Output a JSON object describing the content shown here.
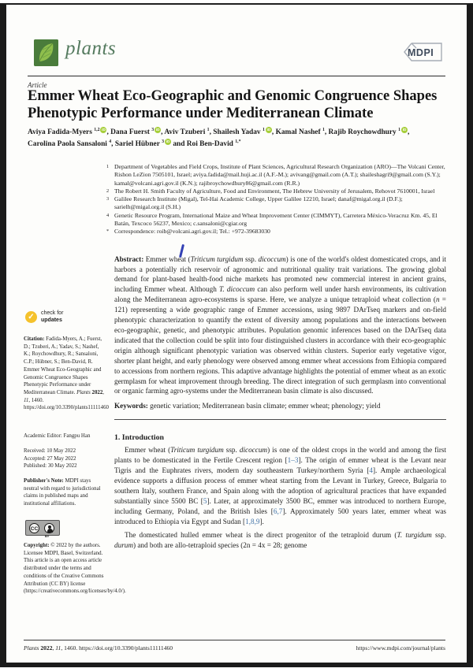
{
  "colors": {
    "accent_orcid_green": "#a6ce39",
    "logo_square_green": "#4a7c3b",
    "logo_leaf_green": "#8fbf4d",
    "journal_name_green": "#547a5e",
    "updates_badge_yellow": "#f5c22c",
    "reference_link_blue": "#4273a8",
    "mdpi_logo_gray": "#3f4b5c",
    "frame_border_dark": "#1b1b1b"
  },
  "icons": {
    "check_glyph": "✓",
    "orcid_glyph": "iD",
    "cc_glyph": "CC",
    "by_glyph": "BY"
  },
  "header": {
    "journal_name": "plants",
    "mdpi_label": "MDPI",
    "article_type": "Article"
  },
  "title": "Emmer Wheat Eco-Geographic and Genomic Congruence Shapes Phenotypic Performance under Mediterranean Climate",
  "authors_rich": [
    {
      "t": "Aviya Fadida-Myers "
    },
    {
      "t": "1,2",
      "sup": true
    },
    {
      "icon": "orcid"
    },
    {
      "t": ", Dana Fuerst "
    },
    {
      "t": "3",
      "sup": true
    },
    {
      "icon": "orcid"
    },
    {
      "t": ", Aviv Tzuberi "
    },
    {
      "t": "1",
      "sup": true
    },
    {
      "t": ", Shailesh Yadav "
    },
    {
      "t": "1",
      "sup": true
    },
    {
      "icon": "orcid"
    },
    {
      "t": ", Kamal Nashef "
    },
    {
      "t": "1",
      "sup": true
    },
    {
      "t": ", Rajib Roychowdhury "
    },
    {
      "t": "1",
      "sup": true
    },
    {
      "icon": "orcid"
    },
    {
      "t": ", Carolina Paola Sansaloni "
    },
    {
      "t": "4",
      "sup": true
    },
    {
      "t": ", Sariel Hübner "
    },
    {
      "t": "3",
      "sup": true
    },
    {
      "icon": "orcid"
    },
    {
      "t": " and Roi Ben-David "
    },
    {
      "t": "1,*",
      "sup": true
    }
  ],
  "affiliations": [
    {
      "num": "1",
      "text": [
        {
          "t": "Department of Vegetables and Field Crops, Institute of Plant Sciences, Agricultural Research Organization (ARO)—The Volcani Center, Rishon LeZion 7505101, Israel; aviya.fadida@mail.huji.ac.il (A.F.-M.); avivang@gmail.com (A.T.); shaileshagri9@gmail.com (S.Y.); kamal@volcani.agri.gov.il (K.N.); rajibroychowdhury86@gmail.com (R.R.)"
        }
      ]
    },
    {
      "num": "2",
      "text": [
        {
          "t": "The Robert H. Smith Faculty of Agriculture, Food and Environment, The Hebrew University of Jerusalem, Rehovot 7610001, Israel"
        }
      ]
    },
    {
      "num": "3",
      "text": [
        {
          "t": "Galilee Research Institute (Migal), Tel-Hai Academic College, Upper Galilee 12210, Israel; danaf@migal.org.il (D.F.); sarielh@migal.org.il (S.H.)"
        }
      ]
    },
    {
      "num": "4",
      "text": [
        {
          "t": "Genetic Resource Program, International Maize and Wheat Improvement Center (CIMMYT), Carretera México-Veracruz Km. 45, El Batán, Texcoco 56237, Mexico; c.sansaloni@cgiar.org"
        }
      ]
    },
    {
      "num": "*",
      "text": [
        {
          "t": "Correspondence: roib@volcani.agri.gov.il; Tel.: +972-39683030"
        }
      ]
    }
  ],
  "abstract_rich": [
    {
      "t": "Abstract: ",
      "b": true
    },
    {
      "t": "Emmer wheat ("
    },
    {
      "t": "Triticum turgidum",
      "i": true
    },
    {
      "t": " ssp. "
    },
    {
      "t": "dicoccum",
      "i": true
    },
    {
      "t": ") is one of the world's oldest domesticated crops, and it harbors a potentially rich reservoir of agronomic and nutritional quality trait variations. The growing global demand for plant-based health-food niche markets has promoted new commercial interest in ancient grains, including Emmer wheat. Although "
    },
    {
      "t": "T. dicoccum",
      "i": true
    },
    {
      "t": " can also perform well under harsh environments, its cultivation along the Mediterranean agro-ecosystems is sparse. Here, we analyze a unique tetraploid wheat collection ("
    },
    {
      "t": "n",
      "i": true
    },
    {
      "t": " = 121) representing a wide geographic range of Emmer accessions, using 9897 DArTseq markers and on-field phenotypic characterization to quantify the extent of diversity among populations and the interactions between eco-geographic, genetic, and phenotypic attributes. Population genomic inferences based on the DArTseq data indicated that the collection could be split into four distinguished clusters in accordance with their eco-geographic origin although significant phenotypic variation was observed within clusters. Superior early vegetative vigor, shorter plant height, and early phenology were observed among emmer wheat accessions from Ethiopia compared to accessions from northern regions. This adaptive advantage highlights the potential of emmer wheat as an exotic germplasm for wheat improvement through breeding. The direct integration of such germplasm into conventional or organic farming agro-systems under the Mediterranean basin climate is also discussed."
    }
  ],
  "keywords_rich": [
    {
      "t": "Keywords: ",
      "b": true
    },
    {
      "t": "genetic variation; Mediterranean basin climate; emmer wheat; phenology; yield"
    }
  ],
  "sidebar": {
    "updates_line1": "check for",
    "updates_line2": "updates",
    "citation_rich": [
      {
        "t": "Citation: ",
        "b": true
      },
      {
        "t": "Fadida-Myers, A.; Fuerst, D.; Tzuberi, A.; Yadav, S.; Nashef, K.; Roychowdhury, R.; Sansaloni, C.P.; Hübner, S.; Ben-David, R. Emmer Wheat Eco-Geographic and Genomic Congruence Shapes Phenotypic Performance under Mediterranean Climate. "
      },
      {
        "t": "Plants ",
        "i": true
      },
      {
        "t": "2022",
        "b": true
      },
      {
        "t": ", "
      },
      {
        "t": "11",
        "i": true
      },
      {
        "t": ", 1460. https://doi.org/10.3390/plants11111460"
      }
    ],
    "academic_editor": "Academic Editor: Fangpu Han",
    "received": "Received: 10 May 2022",
    "accepted": "Accepted: 27 May 2022",
    "published": "Published: 30 May 2022",
    "publisher_note_rich": [
      {
        "t": "Publisher's Note: ",
        "b": true
      },
      {
        "t": "MDPI stays neutral with regard to jurisdictional claims in published maps and institutional affiliations."
      }
    ],
    "copyright_rich": [
      {
        "t": "Copyright: ",
        "b": true
      },
      {
        "t": "© 2022 by the authors. Licensee MDPI, Basel, Switzerland. This article is an open access article distributed under the terms and conditions of the Creative Commons Attribution (CC BY) license (https://creativecommons.org/licenses/by/4.0/)."
      }
    ]
  },
  "introduction": {
    "heading": "1. Introduction",
    "para1_rich": [
      {
        "t": "Emmer wheat ("
      },
      {
        "t": "Triticum turgidum",
        "i": true
      },
      {
        "t": " ssp. "
      },
      {
        "t": "dicoccum",
        "i": true
      },
      {
        "t": ") is one of the oldest crops in the world and among the first plants to be domesticated in the Fertile Crescent region ["
      },
      {
        "t": "1–3",
        "link": true
      },
      {
        "t": "]. The origin of emmer wheat is the Levant near Tigris and the Euphrates rivers, modern day southeastern Turkey/northern Syria ["
      },
      {
        "t": "4",
        "link": true
      },
      {
        "t": "]. Ample archaeological evidence supports a diffusion process of emmer wheat starting from the Levant in Turkey, Greece, Bulgaria to southern Italy, southern France, and Spain along with the adoption of agricultural practices that have expanded substantially since 5500 BC ["
      },
      {
        "t": "5",
        "link": true
      },
      {
        "t": "]. Later, at approximately 3500 BC, emmer was introduced to northern Europe, including Germany, Poland, and the British Isles ["
      },
      {
        "t": "6,7",
        "link": true
      },
      {
        "t": "]. Approximately 500 years later, emmer wheat was introduced to Ethiopia via Egypt and Sudan ["
      },
      {
        "t": "1,8,9",
        "link": true
      },
      {
        "t": "]."
      }
    ],
    "para2_rich": [
      {
        "t": "The domesticated hulled emmer wheat is the direct progenitor of the tetraploid durum ("
      },
      {
        "t": "T. turgidum",
        "i": true
      },
      {
        "t": " ssp. "
      },
      {
        "t": "durum",
        "i": true
      },
      {
        "t": ") and both are allo-tetraploid species (2n = 4x = 28; genome"
      }
    ]
  },
  "footer": {
    "left_rich": [
      {
        "t": "Plants ",
        "i": true
      },
      {
        "t": "2022",
        "b": true
      },
      {
        "t": ", "
      },
      {
        "t": "11",
        "i": true
      },
      {
        "t": ", 1460. https://doi.org/10.3390/plants11111460"
      }
    ],
    "right_url": "https://www.mdpi.com/journal/plants"
  }
}
